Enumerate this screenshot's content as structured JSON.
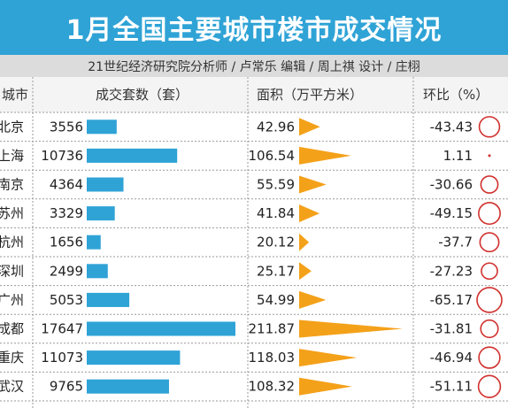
{
  "title": "1月全国主要城市楼市成交情况",
  "credits": "21世纪经济研究院分析师 / 卢常乐   编辑 / 周上祺   设计 / 庄栩",
  "headers": {
    "city": "城市",
    "units": "成交套数（套）",
    "area": "面积（万平方米）",
    "change": "环比（%）"
  },
  "colors": {
    "units_bar": "#2fa3d6",
    "area_triangle": "#f4a11a",
    "change_circle": "#d0312d"
  },
  "chart_data": {
    "type": "table",
    "categories": [
      "北京",
      "上海",
      "南京",
      "苏州",
      "杭州",
      "深圳",
      "广州",
      "成都",
      "重庆",
      "武汉"
    ],
    "series": [
      {
        "name": "成交套数（套）",
        "values": [
          3556,
          10736,
          4364,
          3329,
          1656,
          2499,
          5053,
          17647,
          11073,
          9765
        ]
      },
      {
        "name": "面积（万平方米）",
        "values": [
          42.96,
          106.54,
          55.59,
          41.84,
          20.12,
          25.17,
          54.99,
          211.87,
          118.03,
          108.32
        ]
      },
      {
        "name": "环比（%）",
        "values": [
          -43.43,
          1.11,
          -30.66,
          -49.15,
          -37.7,
          -27.23,
          -65.17,
          -31.81,
          -46.94,
          -51.11
        ]
      }
    ],
    "value_labels": {
      "units": [
        "3556",
        "10736",
        "4364",
        "3329",
        "1656",
        "2499",
        "5053",
        "17647",
        "11073",
        "9765"
      ],
      "area": [
        "42.96",
        "106.54",
        "55.59",
        "41.84",
        "20.12",
        "25.17",
        "54.99",
        "211.87",
        "118.03",
        "108.32"
      ],
      "change": [
        "-43.43",
        "1.11",
        "-30.66",
        "-49.15",
        "-37.7",
        "-27.23",
        "-65.17",
        "-31.81",
        "-46.94",
        "-51.11"
      ]
    }
  }
}
